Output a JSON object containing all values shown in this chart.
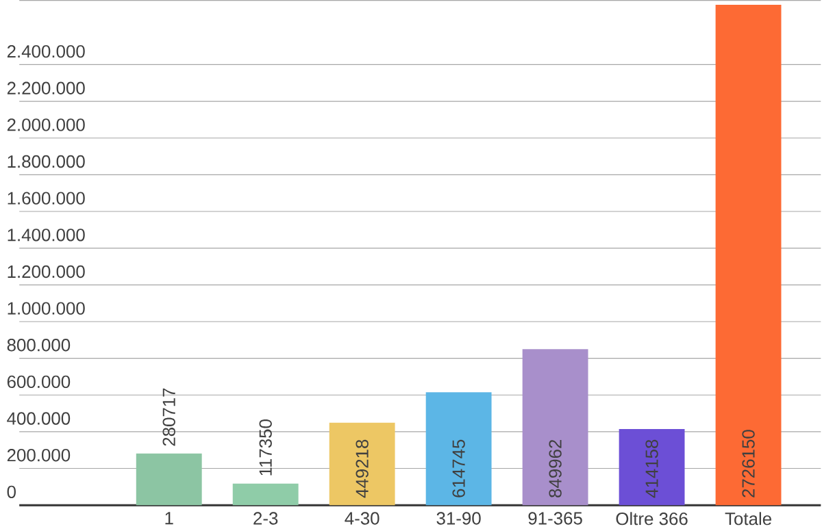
{
  "chart_data": {
    "type": "bar",
    "categories": [
      "1",
      "2-3",
      "4-30",
      "31-90",
      "91-365",
      "Oltre 366",
      "Totale"
    ],
    "values": [
      280717,
      117350,
      449218,
      614745,
      849962,
      414158,
      2726150
    ],
    "colors": [
      "#8cc5a3",
      "#8fcca8",
      "#edc764",
      "#5cb6e6",
      "#a88fcb",
      "#6c4fd6",
      "#fd6a34"
    ],
    "ylim": [
      0,
      2750000
    ],
    "yticks": [
      0,
      {
        "value": 200000,
        "label": "200.000"
      },
      {
        "value": 400000,
        "label": "400.000"
      },
      {
        "value": 600000,
        "label": "600.000"
      },
      {
        "value": 800000,
        "label": "800.000"
      },
      {
        "value": 1000000,
        "label": "1.000.000"
      },
      {
        "value": 1200000,
        "label": "1.200.000"
      },
      {
        "value": 1400000,
        "label": "1.400.000"
      },
      {
        "value": 1600000,
        "label": "1.600.000"
      },
      {
        "value": 1800000,
        "label": "1.800.000"
      },
      {
        "value": 2000000,
        "label": "2.000.000"
      },
      {
        "value": 2200000,
        "label": "2.200.000"
      },
      {
        "value": 2400000,
        "label": "2.400.000"
      }
    ],
    "grid": "y",
    "data_labels": true
  }
}
